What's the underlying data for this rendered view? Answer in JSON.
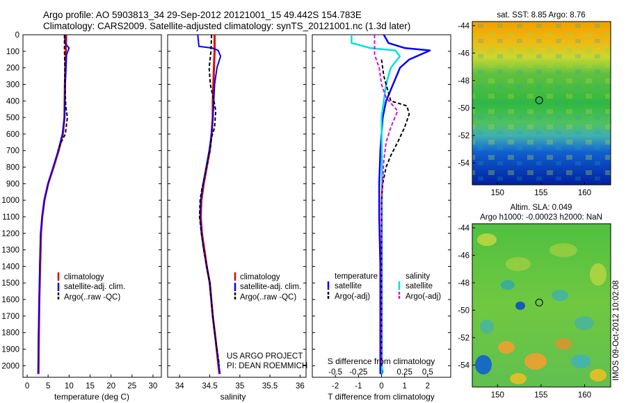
{
  "header": {
    "line1": "Argo profile: AO 5903813_34 29-Sep-2012 20121001_15 49.442S 154.783E",
    "line2": "Climatology: CARS2009. Satellite-adjusted climatology: synTS_20121001.nc (1.3d later)"
  },
  "colors": {
    "climatology": "#e00000",
    "satellite": "#0000ff",
    "argo": "#000000",
    "sat_salinity": "#00e0e0",
    "argo_salinity": "#e000e0"
  },
  "chart_data": [
    {
      "type": "line",
      "xlabel": "temperature (deg C)",
      "xlim": [
        -1,
        32
      ],
      "xticks": [
        "0",
        "5",
        "10",
        "15",
        "20",
        "25",
        "30"
      ],
      "ylim": [
        0,
        2070
      ],
      "yticks": [
        "0",
        "100",
        "200",
        "300",
        "400",
        "500",
        "600",
        "700",
        "800",
        "900",
        "1000",
        "1100",
        "1200",
        "1300",
        "1400",
        "1500",
        "1600",
        "1700",
        "1800",
        "1900",
        "2000"
      ],
      "legend": [
        "climatology",
        "satellite-adj. clim.",
        "Argo(..raw -QC)"
      ],
      "series": [
        {
          "name": "climatology",
          "values": [
            [
              9.3,
              0
            ],
            [
              9.2,
              100
            ],
            [
              9.0,
              300
            ],
            [
              8.9,
              500
            ],
            [
              8.5,
              600
            ],
            [
              7.5,
              700
            ],
            [
              6.3,
              800
            ],
            [
              5.0,
              900
            ],
            [
              4.1,
              1000
            ],
            [
              3.6,
              1100
            ],
            [
              3.3,
              1200
            ],
            [
              3.1,
              1400
            ],
            [
              2.9,
              1600
            ],
            [
              2.8,
              1800
            ],
            [
              2.7,
              2050
            ]
          ]
        },
        {
          "name": "satellite-adj. clim.",
          "values": [
            [
              9.0,
              0
            ],
            [
              9.0,
              50
            ],
            [
              10.0,
              80
            ],
            [
              9.4,
              120
            ],
            [
              9.1,
              300
            ],
            [
              8.9,
              500
            ],
            [
              8.4,
              600
            ],
            [
              7.4,
              700
            ],
            [
              6.2,
              800
            ],
            [
              5.0,
              900
            ],
            [
              4.1,
              1000
            ],
            [
              3.6,
              1100
            ],
            [
              3.2,
              1200
            ],
            [
              3.0,
              1400
            ],
            [
              2.9,
              1600
            ],
            [
              2.7,
              1800
            ],
            [
              2.6,
              2050
            ]
          ]
        },
        {
          "name": "Argo(..raw -QC)",
          "values": [
            [
              8.9,
              0
            ],
            [
              8.9,
              100
            ],
            [
              9.0,
              200
            ],
            [
              9.0,
              300
            ],
            [
              9.2,
              430
            ],
            [
              9.6,
              500
            ],
            [
              9.1,
              600
            ],
            [
              8.1,
              650
            ],
            [
              7.3,
              700
            ]
          ]
        }
      ]
    },
    {
      "type": "line",
      "xlabel": "salinity",
      "xlim": [
        33.8,
        36.1
      ],
      "xticks": [
        "34",
        "34.5",
        "35",
        "35.5",
        "36"
      ],
      "ylim": [
        0,
        2070
      ],
      "legend": [
        "climatology",
        "satellite-adj. clim.",
        "Argo(..raw -QC)"
      ],
      "annotations": [
        "US ARGO PROJECT",
        "PI: DEAN ROEMMICH"
      ],
      "series": [
        {
          "name": "climatology",
          "values": [
            [
              34.58,
              0
            ],
            [
              34.58,
              100
            ],
            [
              34.57,
              200
            ],
            [
              34.56,
              300
            ],
            [
              34.55,
              400
            ],
            [
              34.55,
              500
            ],
            [
              34.53,
              600
            ],
            [
              34.5,
              700
            ],
            [
              34.45,
              800
            ],
            [
              34.4,
              900
            ],
            [
              34.36,
              1000
            ],
            [
              34.35,
              1100
            ],
            [
              34.37,
              1200
            ],
            [
              34.41,
              1300
            ],
            [
              34.45,
              1400
            ],
            [
              34.5,
              1500
            ],
            [
              34.55,
              1700
            ],
            [
              34.6,
              1850
            ],
            [
              34.66,
              2050
            ]
          ]
        },
        {
          "name": "satellite-adj. clim.",
          "values": [
            [
              34.3,
              0
            ],
            [
              34.32,
              70
            ],
            [
              34.54,
              80
            ],
            [
              34.64,
              95
            ],
            [
              34.68,
              130
            ],
            [
              34.62,
              200
            ],
            [
              34.58,
              300
            ],
            [
              34.56,
              450
            ],
            [
              34.53,
              600
            ],
            [
              34.49,
              700
            ],
            [
              34.44,
              800
            ],
            [
              34.39,
              900
            ],
            [
              34.35,
              1000
            ],
            [
              34.34,
              1100
            ],
            [
              34.36,
              1200
            ],
            [
              34.4,
              1300
            ],
            [
              34.45,
              1400
            ],
            [
              34.5,
              1500
            ],
            [
              34.55,
              1700
            ],
            [
              34.6,
              1850
            ],
            [
              34.67,
              2050
            ]
          ]
        },
        {
          "name": "Argo(..raw -QC)",
          "values": [
            [
              34.53,
              0
            ],
            [
              34.52,
              100
            ],
            [
              34.49,
              200
            ],
            [
              34.51,
              300
            ],
            [
              34.58,
              420
            ],
            [
              34.6,
              460
            ],
            [
              34.58,
              560
            ],
            [
              34.53,
              620
            ],
            [
              34.51,
              680
            ],
            [
              34.47,
              760
            ],
            [
              34.42,
              850
            ],
            [
              34.37,
              930
            ],
            [
              34.34,
              1000
            ],
            [
              34.33,
              1100
            ],
            [
              34.36,
              1200
            ],
            [
              34.4,
              1300
            ],
            [
              34.45,
              1400
            ],
            [
              34.5,
              1500
            ],
            [
              34.55,
              1700
            ],
            [
              34.6,
              1850
            ],
            [
              34.66,
              2000
            ]
          ]
        }
      ]
    },
    {
      "type": "line",
      "xlabel": "T difference from climatology",
      "xlim": [
        -3,
        3
      ],
      "xticks": [
        "-2",
        "-1",
        "0",
        "1",
        "2"
      ],
      "sticks_label": "S difference from climatology",
      "sticks": [
        "-0.5",
        "-0.25",
        "0",
        "0.25",
        "0.5"
      ],
      "ylim": [
        0,
        2070
      ],
      "legend_headers": [
        "temperature",
        "salinity"
      ],
      "legend": [
        "satellite",
        "Argo(-adj)",
        "satellite",
        "Argo(-adj)"
      ],
      "series": [
        {
          "name": "satellite",
          "quantity": "temperature",
          "values": [
            [
              0.1,
              0
            ],
            [
              0.3,
              50
            ],
            [
              1.0,
              80
            ],
            [
              2.1,
              95
            ],
            [
              1.2,
              150
            ],
            [
              0.8,
              200
            ],
            [
              0.5,
              300
            ],
            [
              0.2,
              400
            ],
            [
              0.05,
              500
            ],
            [
              -0.05,
              700
            ],
            [
              -0.1,
              900
            ],
            [
              -0.1,
              1100
            ],
            [
              -0.05,
              1400
            ],
            [
              -0.05,
              1800
            ],
            [
              -0.05,
              2050
            ]
          ]
        },
        {
          "name": "satellite",
          "quantity": "salinity",
          "values": [
            [
              -1.3,
              0
            ],
            [
              -1.3,
              50
            ],
            [
              -0.5,
              80
            ],
            [
              0.6,
              95
            ],
            [
              0.8,
              130
            ],
            [
              0.4,
              200
            ],
            [
              0.2,
              300
            ],
            [
              0.1,
              400
            ],
            [
              0,
              500
            ],
            [
              0.02,
              800
            ],
            [
              0.02,
              1500
            ],
            [
              0.02,
              2050
            ]
          ]
        },
        {
          "name": "Argo(-adj)",
          "quantity": "temperature",
          "values": [
            [
              0,
              150
            ],
            [
              0.1,
              250
            ],
            [
              0.3,
              350
            ],
            [
              0.4,
              400
            ],
            [
              1.1,
              430
            ],
            [
              1.2,
              480
            ],
            [
              1.0,
              560
            ],
            [
              0.7,
              650
            ],
            [
              0.4,
              730
            ],
            [
              0.2,
              800
            ],
            [
              0.05,
              900
            ],
            [
              0,
              1000
            ],
            [
              0,
              1200
            ],
            [
              0,
              1500
            ],
            [
              0,
              1800
            ],
            [
              0,
              2000
            ]
          ]
        },
        {
          "name": "Argo(-adj)",
          "quantity": "salinity",
          "values": [
            [
              -0.3,
              0
            ],
            [
              -0.3,
              120
            ],
            [
              -0.1,
              200
            ],
            [
              0,
              300
            ],
            [
              0.2,
              380
            ],
            [
              0.7,
              460
            ],
            [
              0.4,
              560
            ],
            [
              0.2,
              650
            ],
            [
              0.1,
              760
            ],
            [
              0.05,
              880
            ],
            [
              0,
              1000
            ],
            [
              0,
              1200
            ],
            [
              0,
              1500
            ],
            [
              0,
              1800
            ],
            [
              0,
              2000
            ]
          ]
        }
      ]
    },
    {
      "type": "heatmap",
      "title": "sat. SST: 8.85 Argo: 8.76",
      "xticks": [
        "150",
        "155",
        "160"
      ],
      "yticks": [
        "-44",
        "-46",
        "-48",
        "-50",
        "-52",
        "-54"
      ],
      "xlim": [
        147.1,
        163
      ],
      "ylim": [
        -55.6,
        -43.7
      ],
      "marker": [
        154.783,
        -49.442
      ]
    },
    {
      "type": "heatmap",
      "title": "Altim. SLA: 0.049",
      "subtitle": "Argo h1000: -0.00023 h2000: NaN",
      "xticks": [
        "150",
        "155",
        "160"
      ],
      "yticks": [
        "-44",
        "-46",
        "-48",
        "-50",
        "-52",
        "-54"
      ],
      "xlim": [
        147.1,
        163
      ],
      "ylim": [
        -55.6,
        -43.7
      ],
      "marker": [
        154.783,
        -49.442
      ]
    }
  ],
  "watermark": "IMOS 09-Oct-2012 10:02:08"
}
